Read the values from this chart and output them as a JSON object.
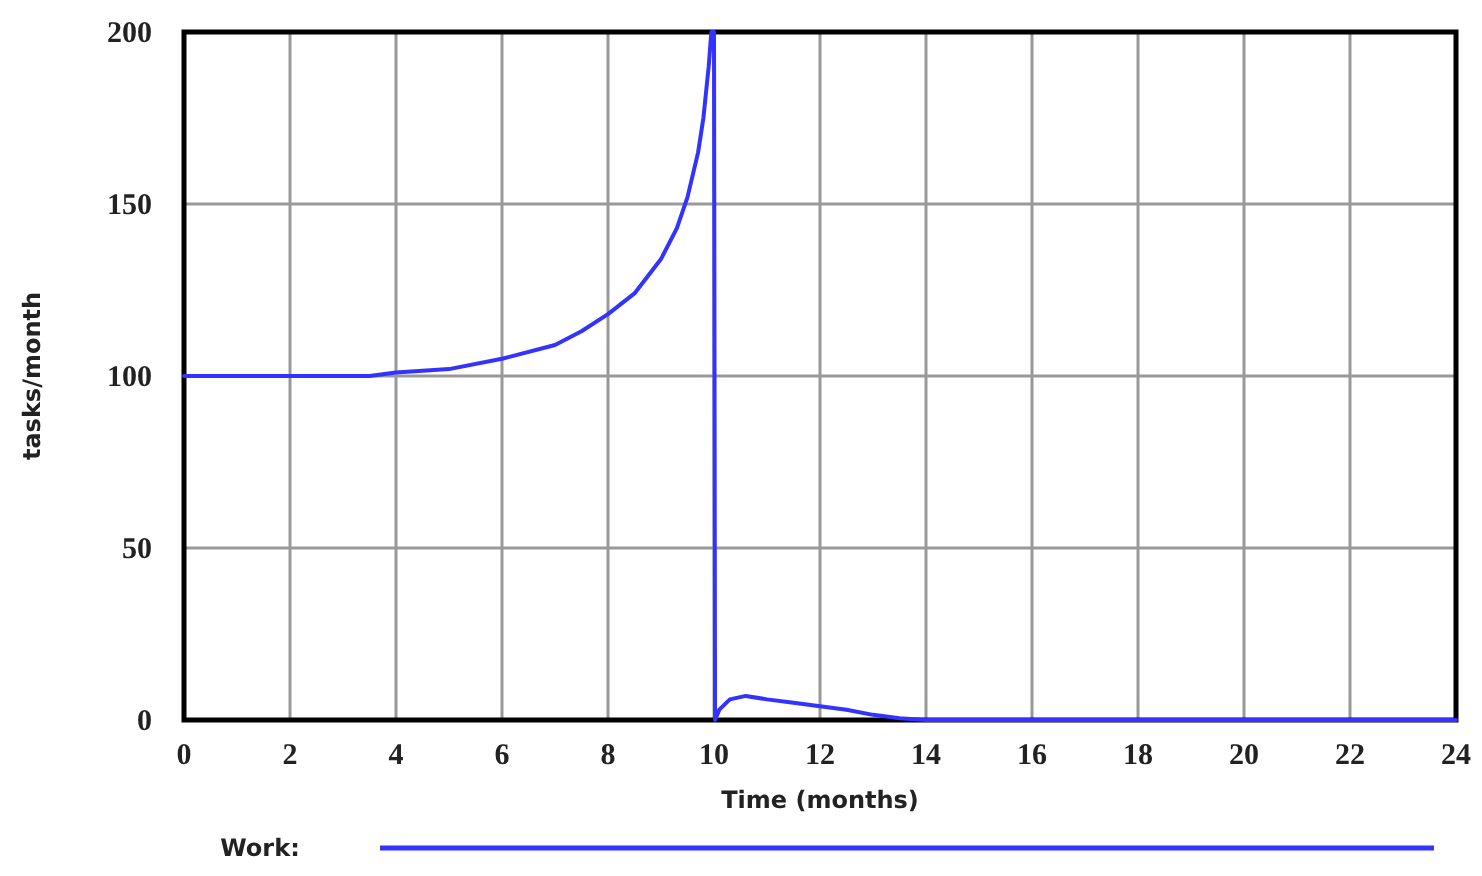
{
  "chart_data": {
    "type": "line",
    "xlabel": "Time (months)",
    "ylabel": "tasks/month",
    "xlim": [
      0,
      24
    ],
    "ylim": [
      0,
      200
    ],
    "xticks": [
      0,
      2,
      4,
      6,
      8,
      10,
      12,
      14,
      16,
      18,
      20,
      22,
      24
    ],
    "yticks": [
      0,
      50,
      100,
      150,
      200
    ],
    "grid": true,
    "legend": "bottom",
    "line_style": "solid",
    "marker": "none",
    "series": [
      {
        "name": "Work:",
        "color": "#3333ff",
        "x": [
          0,
          2,
          3.5,
          4,
          5,
          6,
          7,
          7.5,
          8,
          8.5,
          9,
          9.3,
          9.5,
          9.7,
          9.8,
          9.9,
          9.95,
          10,
          10.02,
          10.1,
          10.3,
          10.6,
          11,
          11.5,
          12,
          12.5,
          13,
          13.5,
          14,
          24
        ],
        "values": [
          100,
          100,
          100,
          101,
          102,
          105,
          109,
          113,
          118,
          124,
          134,
          143,
          152,
          165,
          175,
          190,
          200,
          200,
          0,
          3,
          6,
          7,
          6,
          5,
          4,
          3,
          1.5,
          0.5,
          0,
          0
        ]
      }
    ]
  }
}
